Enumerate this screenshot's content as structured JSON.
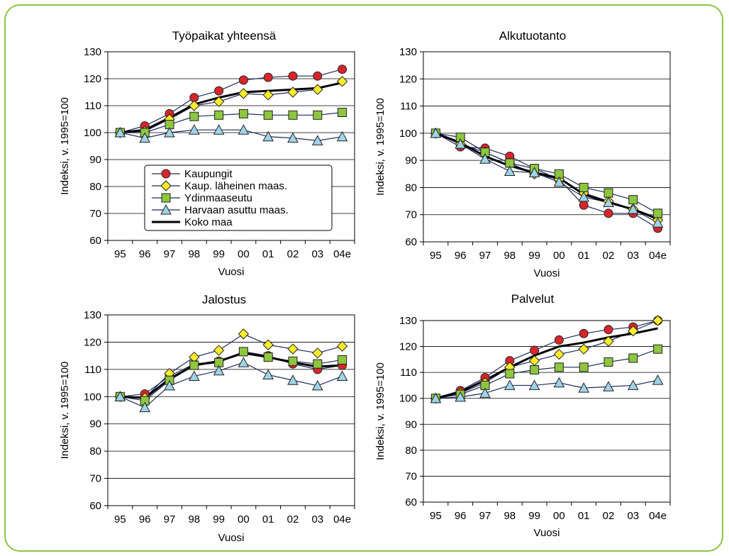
{
  "legend": [
    "Kaupungit",
    "Kaup. läheinen maas.",
    "Ydinmaaseutu",
    "Harvaan asuttu maas.",
    "Koko maa"
  ],
  "series_colors": {
    "Kaupungit": "#d7262b",
    "Kaup. läheinen maas.": "#f7ec2a",
    "Ydinmaaseutu": "#8dc63f",
    "Harvaan asuttu maas.": "#9ed3e8",
    "Koko maa": "#000000"
  },
  "frame_color": "#8dc63f",
  "chart_data": [
    {
      "type": "line",
      "title": "Työpaikat yhteensä",
      "xlabel": "Vuosi",
      "ylabel": "Indeksi, v. 1995=100",
      "categories": [
        "95",
        "96",
        "97",
        "98",
        "99",
        "00",
        "01",
        "02",
        "03",
        "04e"
      ],
      "yticks": [
        "60",
        "70",
        "80",
        "90",
        "100",
        "110",
        "120",
        "130"
      ],
      "ylim": [
        60,
        130
      ],
      "grid": true,
      "legend_position": "bottom-left",
      "series": [
        {
          "name": "Kaupungit",
          "marker": "circle",
          "values": [
            100,
            102.5,
            107,
            113,
            115.5,
            119.5,
            120.5,
            121,
            121,
            123.5
          ]
        },
        {
          "name": "Kaup. läheinen maas.",
          "marker": "diamond",
          "values": [
            100,
            100.5,
            105,
            110,
            111.5,
            114.5,
            114,
            115,
            116,
            119
          ]
        },
        {
          "name": "Ydinmaaseutu",
          "marker": "square",
          "values": [
            100,
            100,
            103,
            106,
            106.5,
            107,
            106.5,
            106.5,
            106.5,
            107.5
          ]
        },
        {
          "name": "Harvaan asuttu maas.",
          "marker": "triangle",
          "values": [
            100,
            98,
            100,
            101,
            101,
            101,
            98.5,
            98,
            97,
            98.5
          ]
        },
        {
          "name": "Koko maa",
          "marker": "none",
          "values": [
            100,
            101,
            105.5,
            110.5,
            113,
            115,
            115.5,
            116,
            116.5,
            118.5
          ]
        }
      ]
    },
    {
      "type": "line",
      "title": "Alkutuotanto",
      "xlabel": "Vuosi",
      "ylabel": "Indeksi, v. 1995=100",
      "categories": [
        "95",
        "96",
        "97",
        "98",
        "99",
        "00",
        "01",
        "02",
        "03",
        "04e"
      ],
      "yticks": [
        "60",
        "70",
        "80",
        "90",
        "100",
        "110",
        "120",
        "130"
      ],
      "ylim": [
        60,
        130
      ],
      "grid": true,
      "series": [
        {
          "name": "Kaupungit",
          "marker": "circle",
          "values": [
            100,
            95,
            94.5,
            91.5,
            87,
            83,
            73.5,
            70.5,
            70.5,
            65
          ]
        },
        {
          "name": "Kaup. läheinen maas.",
          "marker": "diamond",
          "values": [
            100,
            96,
            93,
            89,
            85,
            83,
            78,
            75,
            72,
            68
          ]
        },
        {
          "name": "Ydinmaaseutu",
          "marker": "square",
          "values": [
            100,
            98.5,
            93,
            89,
            87,
            85,
            80,
            78,
            75.5,
            70.5
          ]
        },
        {
          "name": "Harvaan asuttu maas.",
          "marker": "triangle",
          "values": [
            100,
            96,
            90.5,
            86,
            85.5,
            82,
            76.5,
            74.5,
            72,
            67
          ]
        },
        {
          "name": "Koko maa",
          "marker": "none",
          "values": [
            100,
            96.5,
            91.5,
            88,
            85.5,
            83.5,
            77.5,
            74.5,
            72,
            68.5
          ]
        }
      ]
    },
    {
      "type": "line",
      "title": "Jalostus",
      "xlabel": "Vuosi",
      "ylabel": "Indeksi, v. 1995=100",
      "categories": [
        "95",
        "96",
        "97",
        "98",
        "99",
        "00",
        "01",
        "02",
        "03",
        "04e"
      ],
      "yticks": [
        "60",
        "70",
        "80",
        "90",
        "100",
        "110",
        "120",
        "130"
      ],
      "ylim": [
        60,
        130
      ],
      "grid": true,
      "series": [
        {
          "name": "Kaupungit",
          "marker": "circle",
          "values": [
            100,
            101,
            107.5,
            112,
            113,
            116.5,
            115,
            112,
            110,
            111.5
          ]
        },
        {
          "name": "Kaup. läheinen maas.",
          "marker": "diamond",
          "values": [
            100,
            99.5,
            108.5,
            114.5,
            117,
            123,
            119,
            117.5,
            116,
            118.5
          ]
        },
        {
          "name": "Ydinmaaseutu",
          "marker": "square",
          "values": [
            100,
            98.5,
            106,
            111.5,
            112.5,
            116.5,
            114.5,
            113,
            112,
            113.5
          ]
        },
        {
          "name": "Harvaan asuttu maas.",
          "marker": "triangle",
          "values": [
            100,
            96,
            104,
            107.5,
            109.5,
            112.5,
            108,
            106,
            104,
            107.5
          ]
        },
        {
          "name": "Koko maa",
          "marker": "none",
          "values": [
            100,
            99.5,
            106.5,
            111.5,
            113,
            116,
            114.5,
            112.5,
            111,
            111.5
          ]
        }
      ]
    },
    {
      "type": "line",
      "title": "Palvelut",
      "xlabel": "Vuosi",
      "ylabel": "Indeksi, v. 1995=100",
      "categories": [
        "95",
        "96",
        "97",
        "98",
        "99",
        "00",
        "01",
        "02",
        "03",
        "04e"
      ],
      "yticks": [
        "60",
        "70",
        "80",
        "90",
        "100",
        "110",
        "120",
        "130"
      ],
      "ylim": [
        60,
        130
      ],
      "grid": true,
      "series": [
        {
          "name": "Kaupungit",
          "marker": "circle",
          "values": [
            100,
            103,
            108,
            114.5,
            118.5,
            122.5,
            125,
            126.5,
            127.5,
            130
          ]
        },
        {
          "name": "Kaup. läheinen maas.",
          "marker": "diamond",
          "values": [
            100,
            102,
            106,
            112,
            114.5,
            117,
            119,
            122,
            126,
            130
          ]
        },
        {
          "name": "Ydinmaaseutu",
          "marker": "square",
          "values": [
            100,
            101.5,
            105,
            109.5,
            111,
            112,
            112,
            114,
            115.5,
            119
          ]
        },
        {
          "name": "Harvaan asuttu maas.",
          "marker": "triangle",
          "values": [
            100,
            100.5,
            102,
            105,
            105,
            106,
            104,
            104.5,
            105,
            107
          ]
        },
        {
          "name": "Koko maa",
          "marker": "none",
          "values": [
            100,
            102.5,
            107,
            112,
            116.5,
            120,
            121.5,
            123.5,
            125,
            127
          ]
        }
      ]
    }
  ]
}
